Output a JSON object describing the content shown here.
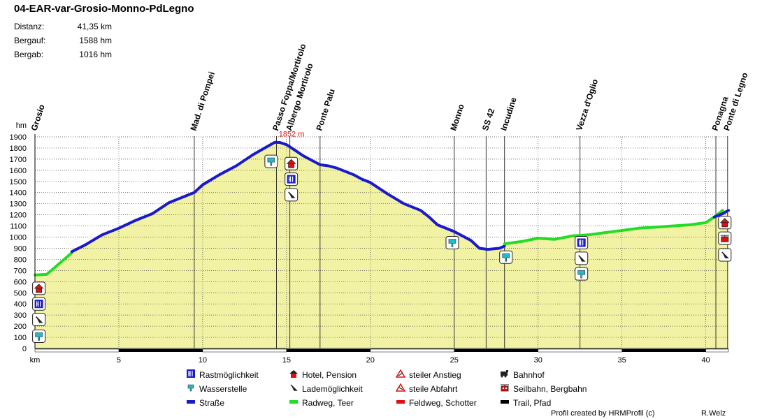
{
  "title": "04-EAR-var-Grosio-Monno-PdLegno",
  "stats": [
    {
      "label": "Distanz:",
      "value": "41,35 km"
    },
    {
      "label": "Bergauf:",
      "value": "1588 hm"
    },
    {
      "label": "Bergab:",
      "value": "1016 hm"
    }
  ],
  "chart_data": {
    "type": "area",
    "title": "04-EAR-var-Grosio-Monno-PdLegno",
    "xlabel": "km",
    "ylabel": "hm",
    "xlim": [
      0,
      41.35
    ],
    "ylim": [
      0,
      1900
    ],
    "x_ticks": [
      5,
      10,
      15,
      20,
      25,
      30,
      35,
      40
    ],
    "y_ticks": [
      0,
      100,
      200,
      300,
      400,
      500,
      600,
      700,
      800,
      900,
      1000,
      1100,
      1200,
      1300,
      1400,
      1500,
      1600,
      1700,
      1800,
      1900
    ],
    "grid": true,
    "fill_color": "#f2f2a4",
    "series": [
      {
        "name": "Radweg, Teer",
        "color": "#22dd22",
        "x": [
          0,
          0.7,
          1.2,
          2.2
        ],
        "y": [
          660,
          665,
          730,
          860
        ]
      },
      {
        "name": "Straße",
        "color": "#1a1acc",
        "x": [
          2.2,
          3,
          4,
          5,
          6,
          7,
          8,
          9,
          9.5,
          10,
          11,
          12,
          12.5,
          13,
          13.7,
          14.3,
          14.6,
          15,
          15.5,
          16,
          17,
          17.5,
          18,
          19,
          19.5,
          20,
          21,
          22,
          23,
          23.5,
          24,
          25,
          26,
          26.5,
          27,
          27.7,
          28
        ],
        "y": [
          870,
          930,
          1020,
          1080,
          1150,
          1210,
          1310,
          1370,
          1400,
          1470,
          1560,
          1640,
          1690,
          1740,
          1800,
          1852,
          1850,
          1830,
          1780,
          1730,
          1650,
          1640,
          1620,
          1560,
          1520,
          1490,
          1390,
          1300,
          1240,
          1180,
          1110,
          1050,
          970,
          900,
          890,
          900,
          920
        ]
      },
      {
        "name": "Radweg, Teer",
        "color": "#22dd22",
        "x": [
          28,
          28.5,
          29,
          30,
          31,
          32,
          33,
          34,
          35,
          36,
          37,
          38,
          39,
          40,
          40.5,
          41
        ],
        "y": [
          940,
          950,
          960,
          990,
          980,
          1010,
          1020,
          1040,
          1060,
          1080,
          1090,
          1100,
          1110,
          1130,
          1180,
          1240
        ]
      },
      {
        "name": "Straße",
        "color": "#1a1acc",
        "x": [
          40.5,
          41,
          41.35
        ],
        "y": [
          1180,
          1210,
          1240
        ]
      }
    ],
    "peak_label": {
      "text": "1852 m",
      "x": 14.3,
      "y": 1852
    },
    "waypoints": [
      {
        "name": "Grosio",
        "km": 0
      },
      {
        "name": "Mad. di Pompei",
        "km": 9.5
      },
      {
        "name": "Passo Foppa/Mortirolo",
        "km": 14.4
      },
      {
        "name": "Albergo Mortirolo",
        "km": 15.2
      },
      {
        "name": "Ponte Palu",
        "km": 17.0
      },
      {
        "name": "Monno",
        "km": 25.0
      },
      {
        "name": "SS 42",
        "km": 26.9
      },
      {
        "name": "Incudine",
        "km": 28.0
      },
      {
        "name": "Vezza d'Oglio",
        "km": 32.5
      },
      {
        "name": "Ponagna",
        "km": 40.6
      },
      {
        "name": "Ponte di Legno",
        "km": 41.3
      }
    ],
    "poi_icons": [
      {
        "km": 0.15,
        "elev": 540,
        "icon": "hotel"
      },
      {
        "km": 0.15,
        "elev": 400,
        "icon": "restaurant"
      },
      {
        "km": 0.15,
        "elev": 260,
        "icon": "charging"
      },
      {
        "km": 0.15,
        "elev": 110,
        "icon": "water"
      },
      {
        "km": 14.0,
        "elev": 1680,
        "icon": "water"
      },
      {
        "km": 15.2,
        "elev": 1660,
        "icon": "hotel"
      },
      {
        "km": 15.2,
        "elev": 1520,
        "icon": "restaurant"
      },
      {
        "km": 15.2,
        "elev": 1380,
        "icon": "charging"
      },
      {
        "km": 24.8,
        "elev": 950,
        "icon": "water"
      },
      {
        "km": 28.0,
        "elev": 820,
        "icon": "water"
      },
      {
        "km": 32.5,
        "elev": 950,
        "icon": "restaurant"
      },
      {
        "km": 32.5,
        "elev": 810,
        "icon": "charging"
      },
      {
        "km": 32.5,
        "elev": 670,
        "icon": "water"
      },
      {
        "km": 41.3,
        "elev": 1130,
        "icon": "hotel"
      },
      {
        "km": 41.3,
        "elev": 990,
        "icon": "cablecar"
      },
      {
        "km": 41.3,
        "elev": 840,
        "icon": "charging"
      }
    ],
    "surface_bar": [
      {
        "from": 0,
        "to": 5,
        "type": "white"
      },
      {
        "from": 5,
        "to": 10,
        "type": "black"
      },
      {
        "from": 10,
        "to": 15,
        "type": "white"
      },
      {
        "from": 15,
        "to": 20,
        "type": "black"
      },
      {
        "from": 20,
        "to": 25,
        "type": "white"
      },
      {
        "from": 25,
        "to": 30,
        "type": "black"
      },
      {
        "from": 30,
        "to": 35,
        "type": "white"
      },
      {
        "from": 35,
        "to": 40,
        "type": "black"
      },
      {
        "from": 40,
        "to": 41.35,
        "type": "white"
      }
    ]
  },
  "legend": [
    {
      "icon": "restaurant",
      "label": "Rastmöglichkeit"
    },
    {
      "icon": "water",
      "label": "Wasserstelle"
    },
    {
      "icon": "road-line",
      "label": "Straße",
      "color": "#1a1acc"
    },
    {
      "icon": "hotel",
      "label": "Hotel, Pension"
    },
    {
      "icon": "charging",
      "label": "Lademöglichkeit"
    },
    {
      "icon": "cycleway-line",
      "label": "Radweg, Teer",
      "color": "#22dd22"
    },
    {
      "icon": "steep-up",
      "label": "steiler Anstieg"
    },
    {
      "icon": "steep-down",
      "label": "steile Abfahrt"
    },
    {
      "icon": "dirt-line",
      "label": "Feldweg, Schotter",
      "color": "#dd1111"
    },
    {
      "icon": "train",
      "label": "Bahnhof"
    },
    {
      "icon": "cablecar",
      "label": "Seilbahn, Bergbahn"
    },
    {
      "icon": "trail-line",
      "label": "Trail, Pfad",
      "color": "#000000"
    }
  ],
  "footer": {
    "credit": "Profil created by HRMProfil (c)",
    "author": "R.Welz"
  }
}
